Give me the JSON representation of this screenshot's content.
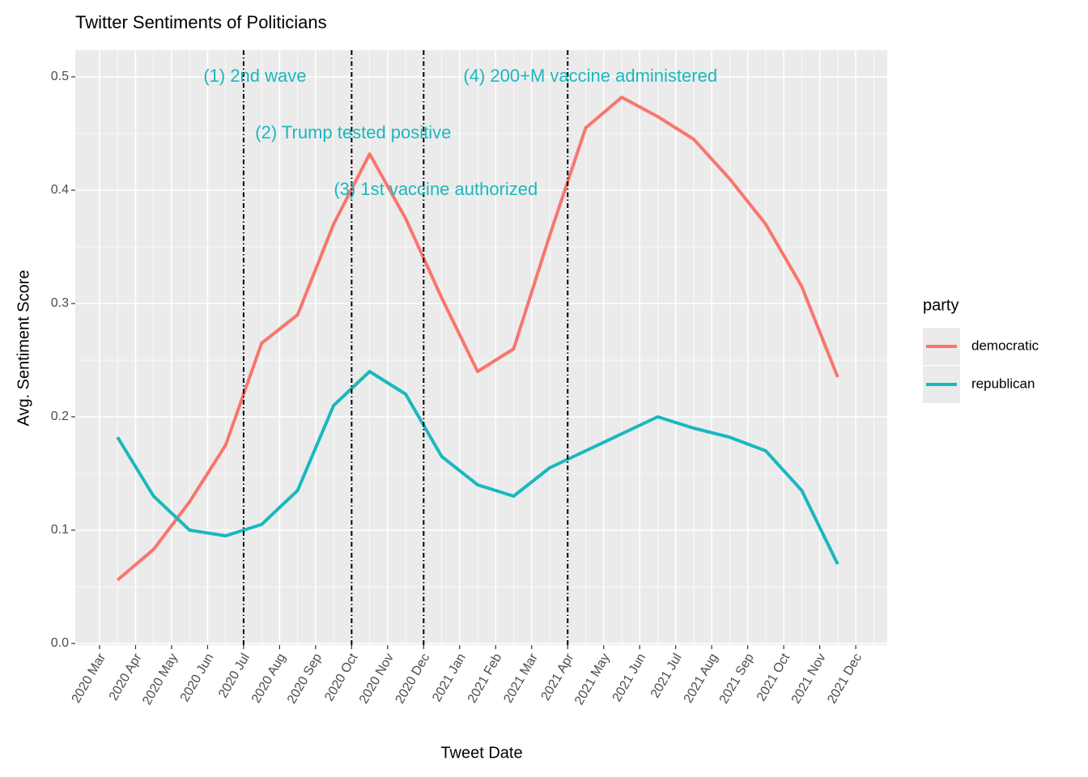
{
  "chart_data": {
    "type": "line",
    "title": "Twitter Sentiments of Politicians",
    "x_label": "Tweet Date",
    "y_label": "Avg. Sentiment Score",
    "x": [
      "2020 Mar",
      "2020 Apr",
      "2020 May",
      "2020 Jun",
      "2020 Jul",
      "2020 Aug",
      "2020 Sep",
      "2020 Oct",
      "2020 Nov",
      "2020 Dec",
      "2021 Jan",
      "2021 Feb",
      "2021 Mar",
      "2021 Apr",
      "2021 May",
      "2021 Jun",
      "2021 Jul",
      "2021 Aug",
      "2021 Sep",
      "2021 Oct",
      "2021 Nov"
    ],
    "series": [
      {
        "name": "democratic",
        "color": "#F8766D",
        "values": [
          0.056,
          0.083,
          0.125,
          0.175,
          0.265,
          0.29,
          0.37,
          0.432,
          0.375,
          0.305,
          0.24,
          0.26,
          0.36,
          0.455,
          0.482,
          0.465,
          0.445,
          0.41,
          0.37,
          0.315,
          0.235
        ]
      },
      {
        "name": "republican",
        "color": "#1AB8BE",
        "values": [
          0.182,
          0.13,
          0.1,
          0.095,
          0.105,
          0.135,
          0.21,
          0.24,
          0.22,
          0.165,
          0.14,
          0.13,
          0.155,
          0.17,
          0.185,
          0.2,
          0.19,
          0.182,
          0.17,
          0.135,
          0.07
        ]
      }
    ],
    "ylim": [
      0,
      0.5
    ],
    "yticks": [
      {
        "value": 0,
        "label": "0.0"
      },
      0.1,
      0.2,
      0.3,
      0.4,
      0.5
    ],
    "xticks": [
      "2020 Mar",
      "2020 Apr",
      "2020 May",
      "2020 Jun",
      "2020 Jul",
      "2020 Aug",
      "2020 Sep",
      "2020 Oct",
      "2020 Nov",
      "2020 Dec",
      "2021 Jan",
      "2021 Feb",
      "2021 Mar",
      "2021 Apr",
      "2021 May",
      "2021 Jun",
      "2021 Jul",
      "2021 Aug",
      "2021 Sep",
      "2021 Oct",
      "2021 Nov",
      "2021 Dec"
    ],
    "vlines": [
      "2020 Jul",
      "2020 Oct",
      "2020 Dec",
      "2021 Apr"
    ],
    "annotations": [
      {
        "text": "(1) 2nd wave",
        "x": "2020 Jul",
        "y": 0.5
      },
      {
        "text": "(2) Trump tested positive",
        "x": "2020 Oct",
        "y": 0.45
      },
      {
        "text": "(3) 1st vaccine authorized",
        "x": "2020 Dec",
        "y": 0.4
      },
      {
        "text": "(4) 200+M vaccine administered",
        "x": "2021 Apr",
        "y": 0.5
      }
    ],
    "annotation_color": "#1AB8BE",
    "legend_title": "party",
    "legend_position": "right",
    "grid": true
  }
}
